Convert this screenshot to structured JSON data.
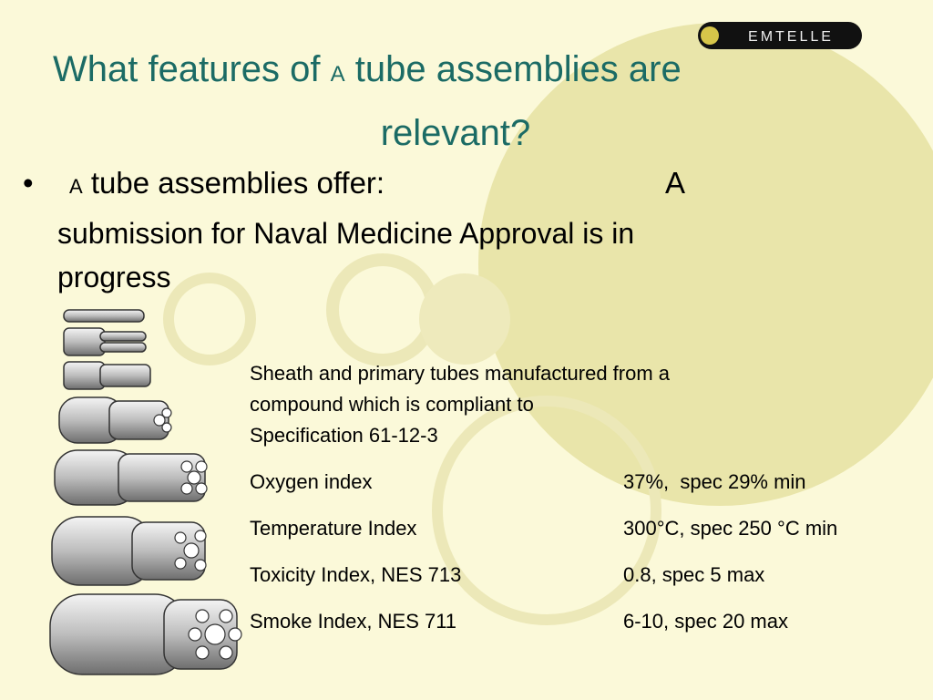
{
  "logo": "EMTELLE",
  "title": {
    "before": "What features of",
    "mark": "A",
    "after": "tube assemblies are",
    "line2": "relevant?"
  },
  "bullet": {
    "mark": "A",
    "text": "tube assemblies offer:",
    "mark2": "A",
    "line2": "submission for Naval Medicine Approval is in",
    "line3": "progress"
  },
  "description": [
    "Sheath and primary tubes manufactured from a",
    "compound which is compliant to",
    "Specification 61-12-3"
  ],
  "table": {
    "rows": [
      [
        "Oxygen index",
        "37%,  spec 29% min"
      ],
      [
        "Temperature Index",
        "300°C, spec 250 °C min"
      ],
      [
        "Toxicity Index, NES 713",
        "0.8, spec 5 max"
      ],
      [
        "Smoke Index, NES 711",
        "6-10, spec 20 max"
      ]
    ]
  }
}
